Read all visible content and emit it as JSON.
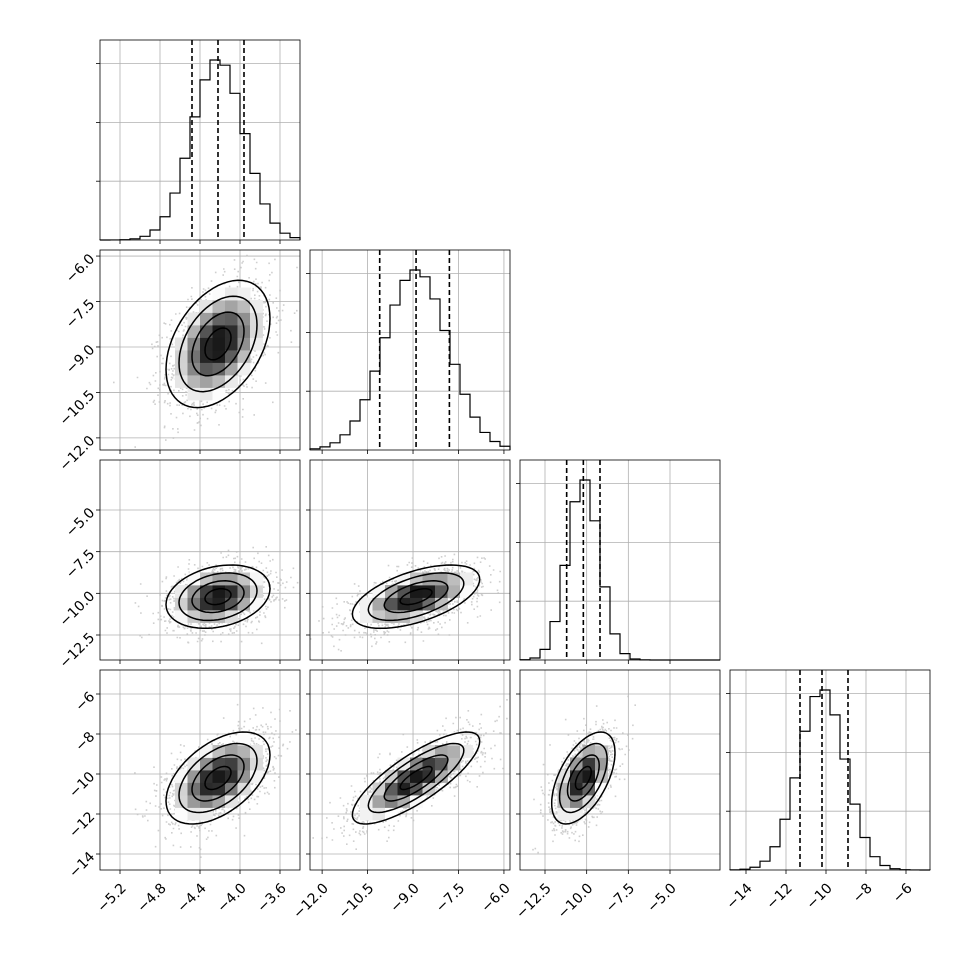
{
  "chart_data": {
    "type": "corner",
    "n_params": 4,
    "grid": true,
    "colors": {
      "line": "#000000",
      "grid": "#b0b0b0",
      "points": "#bfbfbf"
    },
    "params": [
      {
        "range": [
          -5.4,
          -3.4
        ],
        "ticks": [
          -5.2,
          -4.8,
          -4.4,
          -4.0,
          -3.6
        ],
        "tick_labels": [
          "-5.2",
          "-4.8",
          "-4.4",
          "-4.0",
          "-3.6"
        ],
        "quantiles": [
          -4.48,
          -4.22,
          -3.96
        ],
        "mean": -4.22,
        "sd": 0.26
      },
      {
        "range": [
          -12.4,
          -5.8
        ],
        "ticks": [
          -12.0,
          -10.5,
          -9.0,
          -7.5,
          -6.0
        ],
        "tick_labels": [
          "-12.0",
          "-10.5",
          "-9.0",
          "-7.5",
          "-6.0"
        ],
        "quantiles": [
          -10.1,
          -8.9,
          -7.8
        ],
        "mean": -8.9,
        "sd": 1.05
      },
      {
        "range": [
          -14.0,
          -2.0
        ],
        "ticks": [
          -12.5,
          -10.0,
          -7.5,
          -5.0
        ],
        "tick_labels": [
          "-12.5",
          "-10.0",
          "-7.5",
          "-5.0"
        ],
        "quantiles": [
          -11.2,
          -10.2,
          -9.2
        ],
        "mean": -10.2,
        "sd": 0.95
      },
      {
        "range": [
          -14.8,
          -4.8
        ],
        "ticks": [
          -14,
          -12,
          -10,
          -8,
          -6
        ],
        "tick_labels": [
          "-14",
          "-12",
          "-10",
          "-8",
          "-6"
        ],
        "quantiles": [
          -11.3,
          -10.2,
          -8.9
        ],
        "mean": -10.2,
        "sd": 1.15
      }
    ],
    "correlations": [
      {
        "row": 1,
        "col": 0,
        "rho": 0.4
      },
      {
        "row": 2,
        "col": 0,
        "rho": 0.25
      },
      {
        "row": 2,
        "col": 1,
        "rho": 0.55
      },
      {
        "row": 3,
        "col": 0,
        "rho": 0.5
      },
      {
        "row": 3,
        "col": 1,
        "rho": 0.8
      },
      {
        "row": 3,
        "col": 2,
        "rho": 0.55
      }
    ]
  }
}
